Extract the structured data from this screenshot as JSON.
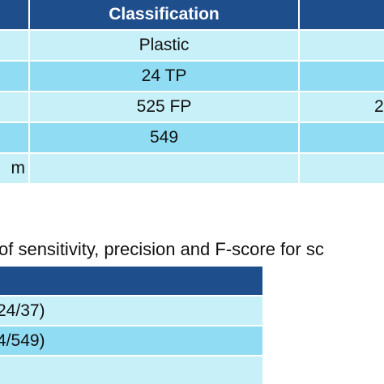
{
  "table1": {
    "header": [
      "",
      "Classification",
      ""
    ],
    "rows": [
      [
        "",
        "Plastic",
        ""
      ],
      [
        "",
        "24 TP",
        ""
      ],
      [
        "",
        "525 FP",
        "2"
      ],
      [
        "",
        "549",
        ""
      ],
      [
        "m",
        "",
        ""
      ]
    ]
  },
  "caption": "of sensitivity, precision and F-score for sc",
  "table2": {
    "rows": [
      "",
      "24/37)",
      "4/549)",
      ""
    ]
  },
  "colors": {
    "header": "#1f4e8c",
    "row_light": "#c8f0f8",
    "row_dark": "#8fdcf3"
  }
}
